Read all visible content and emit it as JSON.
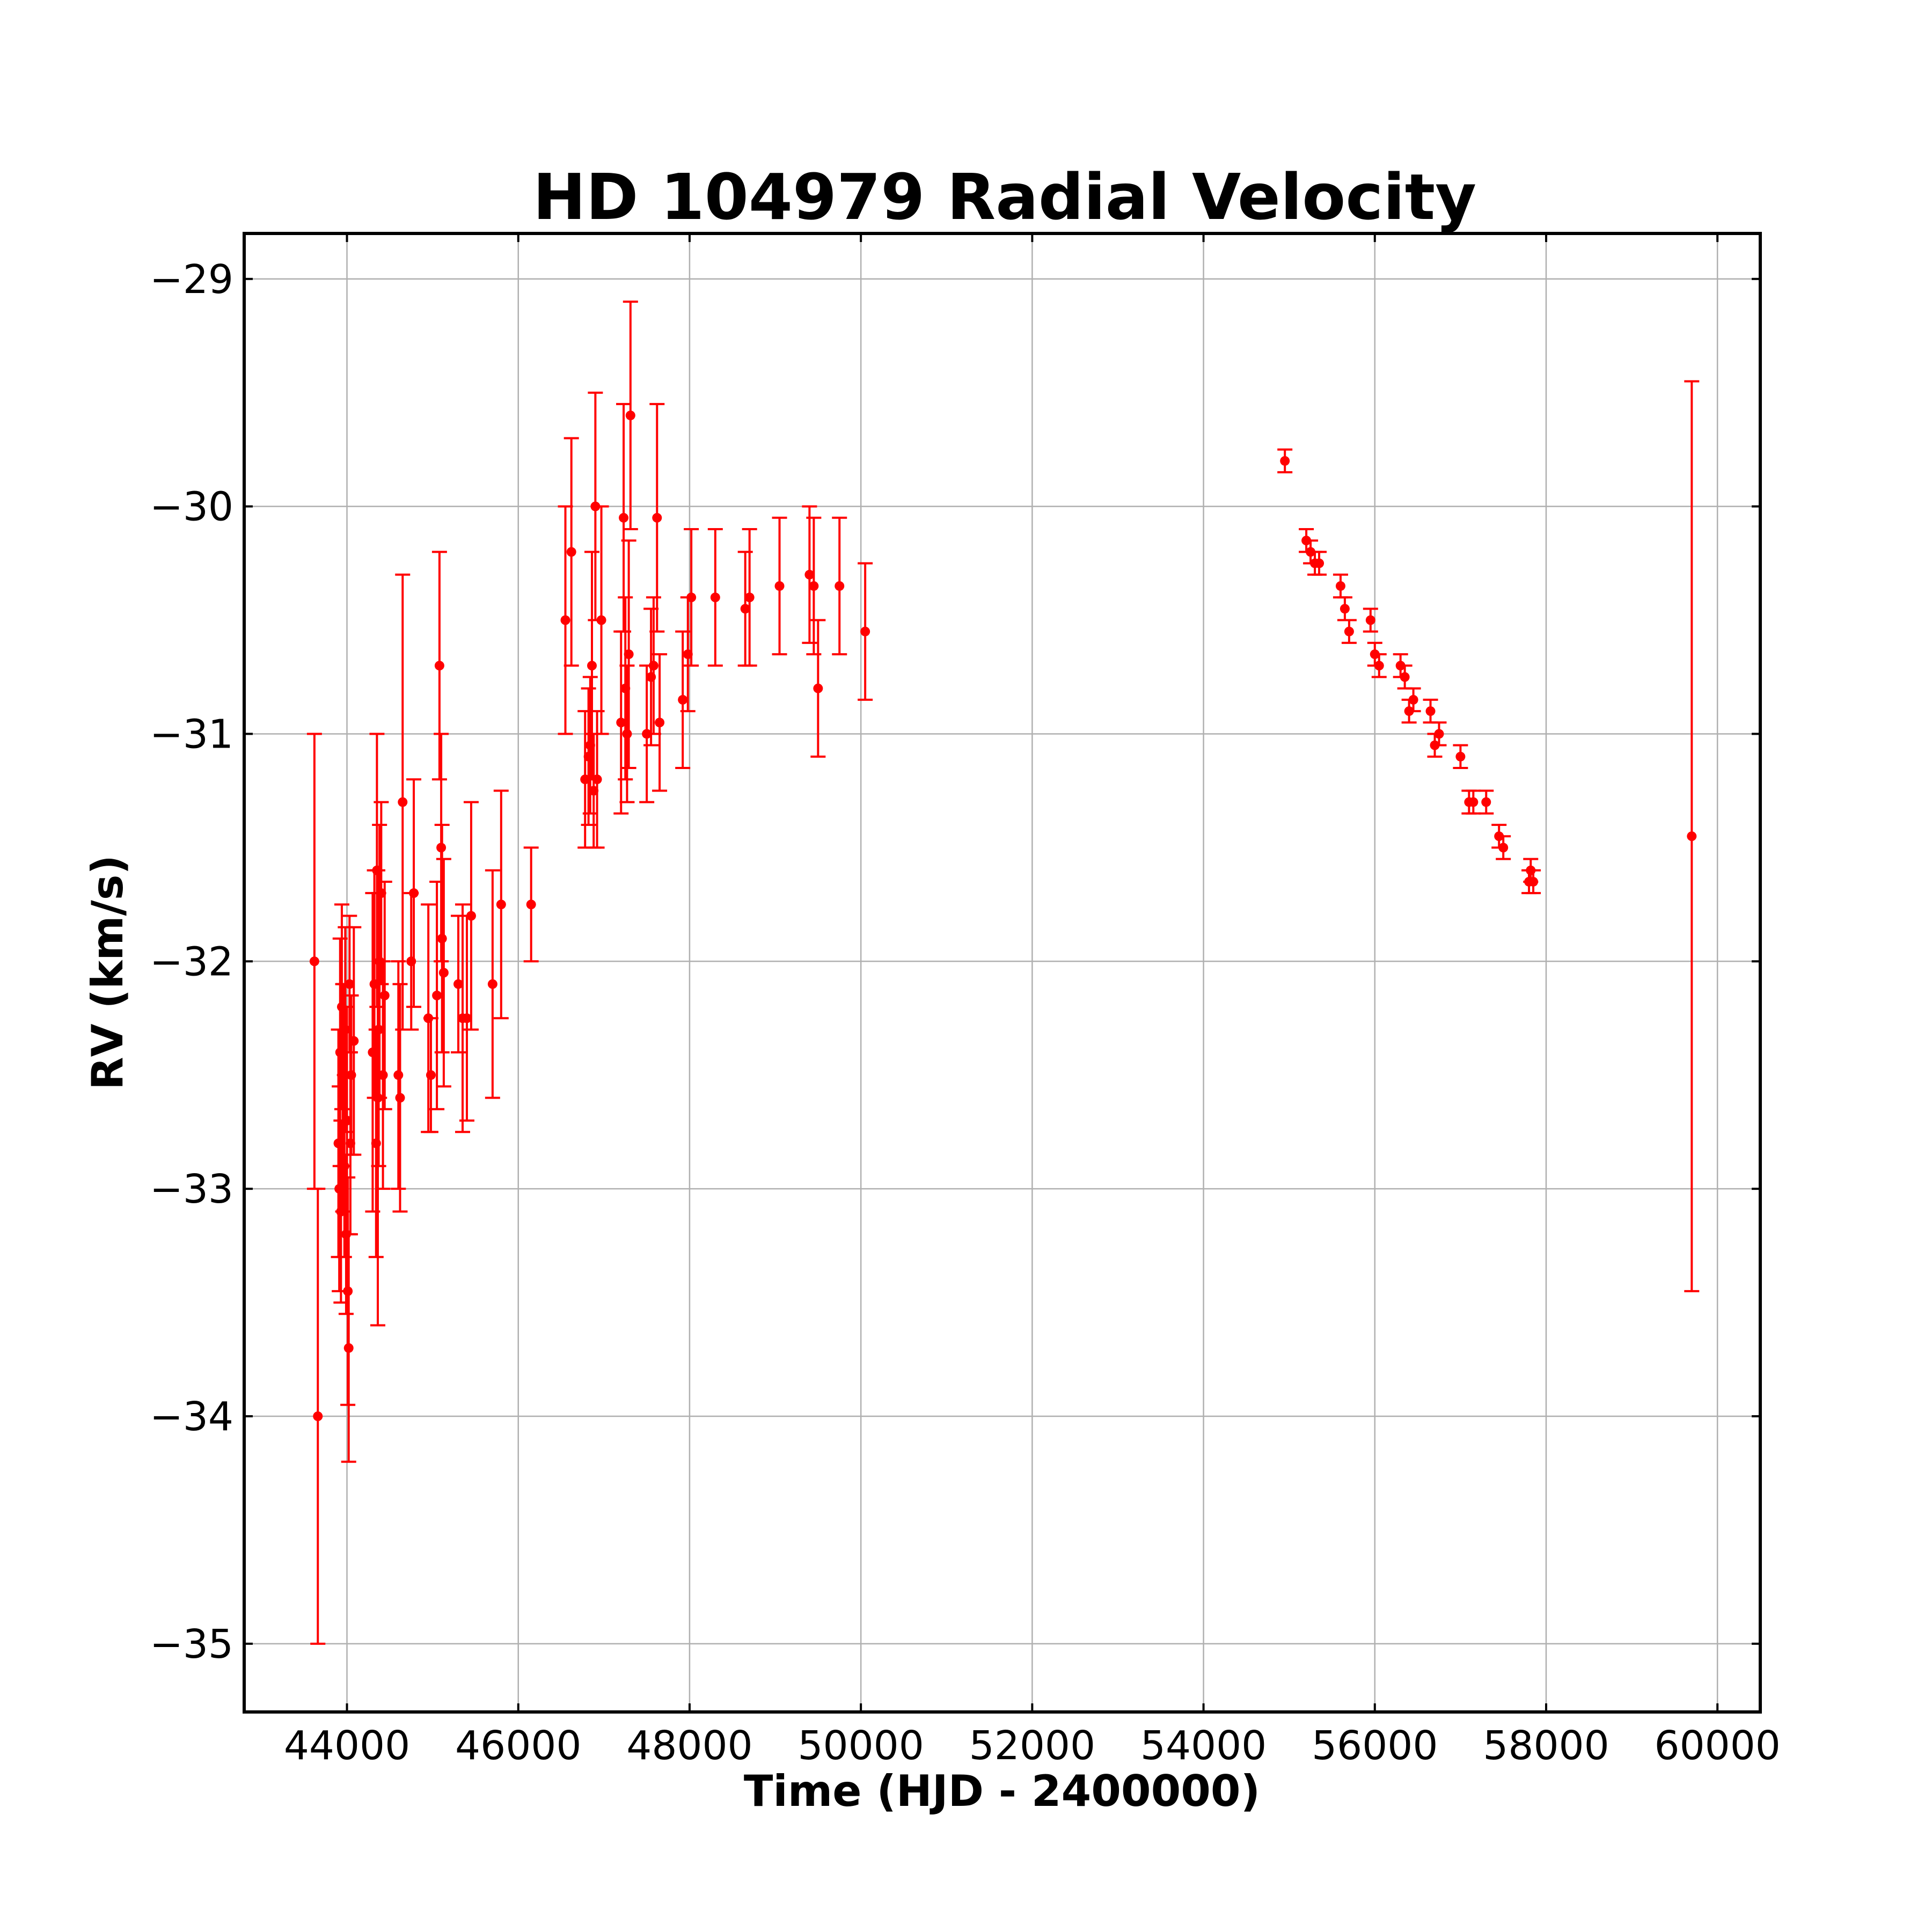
{
  "chart_data": {
    "type": "scatter",
    "title": "HD 104979 Radial Velocity",
    "xlabel": "Time (HJD - 2400000)",
    "ylabel": "RV (km/s)",
    "xlim": [
      42800,
      60500
    ],
    "ylim": [
      -35.3,
      -28.8
    ],
    "xticks": [
      44000,
      46000,
      48000,
      50000,
      52000,
      54000,
      56000,
      58000,
      60000
    ],
    "yticks": [
      -29,
      -30,
      -31,
      -32,
      -33,
      -34,
      -35
    ],
    "ytick_labels": [
      "−29",
      "−30",
      "−31",
      "−32",
      "−33",
      "−34",
      "−35"
    ],
    "grid": true,
    "color": "#ff0000",
    "series": [
      {
        "x": [
          43620,
          43660,
          43900,
          43910,
          43920,
          43930,
          43940,
          43950,
          43960,
          43970,
          43980,
          43990,
          44000,
          44010,
          44020,
          44030,
          44040,
          44050,
          44080,
          44300,
          44320,
          44340,
          44350,
          44360,
          44370,
          44380,
          44400,
          44420,
          44440,
          44600,
          44620,
          44650,
          44750,
          44780,
          44950,
          44980,
          45050,
          45080,
          45100,
          45110,
          45130,
          45300,
          45350,
          45400,
          45450,
          45700,
          45800,
          46150,
          46550,
          46620,
          46780,
          46820,
          46840,
          46860,
          46880,
          46900,
          46920,
          46970,
          47200,
          47230,
          47250,
          47270,
          47290,
          47310,
          47500,
          47550,
          47580,
          47620,
          47650,
          47920,
          47980,
          48020,
          48300,
          48650,
          48700,
          49050,
          49400,
          49450,
          49500,
          49750,
          50050,
          54950,
          55200,
          55250,
          55300,
          55350,
          55600,
          55650,
          55700,
          55950,
          56000,
          56050,
          56300,
          56350,
          56400,
          56450,
          56650,
          56700,
          56750,
          57000,
          57100,
          57150,
          57300,
          57450,
          57500,
          57800,
          57820,
          57850,
          59700
        ],
        "y": [
          -32.0,
          -34.0,
          -32.8,
          -33.0,
          -32.4,
          -33.1,
          -32.2,
          -32.6,
          -32.5,
          -32.9,
          -32.3,
          -33.2,
          -32.7,
          -33.45,
          -33.7,
          -32.1,
          -32.8,
          -32.5,
          -32.35,
          -32.4,
          -32.1,
          -32.8,
          -31.6,
          -32.6,
          -32.3,
          -32.0,
          -31.7,
          -32.5,
          -32.15,
          -32.5,
          -32.6,
          -31.3,
          -32.0,
          -31.7,
          -32.25,
          -32.5,
          -32.15,
          -30.7,
          -31.5,
          -31.9,
          -32.05,
          -32.1,
          -32.25,
          -32.25,
          -31.8,
          -32.1,
          -31.75,
          -31.75,
          -30.5,
          -30.2,
          -31.2,
          -31.1,
          -31.05,
          -30.7,
          -31.25,
          -30.0,
          -31.2,
          -30.5,
          -30.95,
          -30.05,
          -30.8,
          -31.0,
          -30.65,
          -29.6,
          -31.0,
          -30.75,
          -30.7,
          -30.05,
          -30.95,
          -30.85,
          -30.65,
          -30.4,
          -30.4,
          -30.45,
          -30.4,
          -30.35,
          -30.3,
          -30.35,
          -30.8,
          -30.35,
          -30.55,
          -29.8,
          -30.15,
          -30.2,
          -30.25,
          -30.25,
          -30.35,
          -30.45,
          -30.55,
          -30.5,
          -30.65,
          -30.7,
          -30.7,
          -30.75,
          -30.9,
          -30.85,
          -30.9,
          -31.05,
          -31.0,
          -31.1,
          -31.3,
          -31.3,
          -31.3,
          -31.45,
          -31.5,
          -31.65,
          -31.6,
          -31.65,
          -31.45
        ],
        "error": [
          1.0,
          1.0,
          0.5,
          0.45,
          0.5,
          0.4,
          0.45,
          0.5,
          0.4,
          0.4,
          0.45,
          0.35,
          0.5,
          0.5,
          0.5,
          0.3,
          0.4,
          0.35,
          0.5,
          0.7,
          0.5,
          0.5,
          0.6,
          1.0,
          0.6,
          0.6,
          0.4,
          0.5,
          0.5,
          0.5,
          0.5,
          1.0,
          0.3,
          0.5,
          0.5,
          0.25,
          0.5,
          0.5,
          0.5,
          0.5,
          0.5,
          0.3,
          0.5,
          0.45,
          0.5,
          0.5,
          0.5,
          0.25,
          0.5,
          0.5,
          0.3,
          0.3,
          0.3,
          0.5,
          0.25,
          0.5,
          0.3,
          0.5,
          0.4,
          0.5,
          0.4,
          0.3,
          0.5,
          0.5,
          0.3,
          0.3,
          0.3,
          0.5,
          0.3,
          0.3,
          0.25,
          0.3,
          0.3,
          0.25,
          0.3,
          0.3,
          0.3,
          0.3,
          0.3,
          0.3,
          0.3,
          0.05,
          0.05,
          0.05,
          0.05,
          0.05,
          0.05,
          0.05,
          0.05,
          0.05,
          0.05,
          0.05,
          0.05,
          0.05,
          0.05,
          0.05,
          0.05,
          0.05,
          0.05,
          0.05,
          0.05,
          0.05,
          0.05,
          0.05,
          0.05,
          0.05,
          0.05,
          0.05,
          2.0
        ]
      }
    ]
  }
}
